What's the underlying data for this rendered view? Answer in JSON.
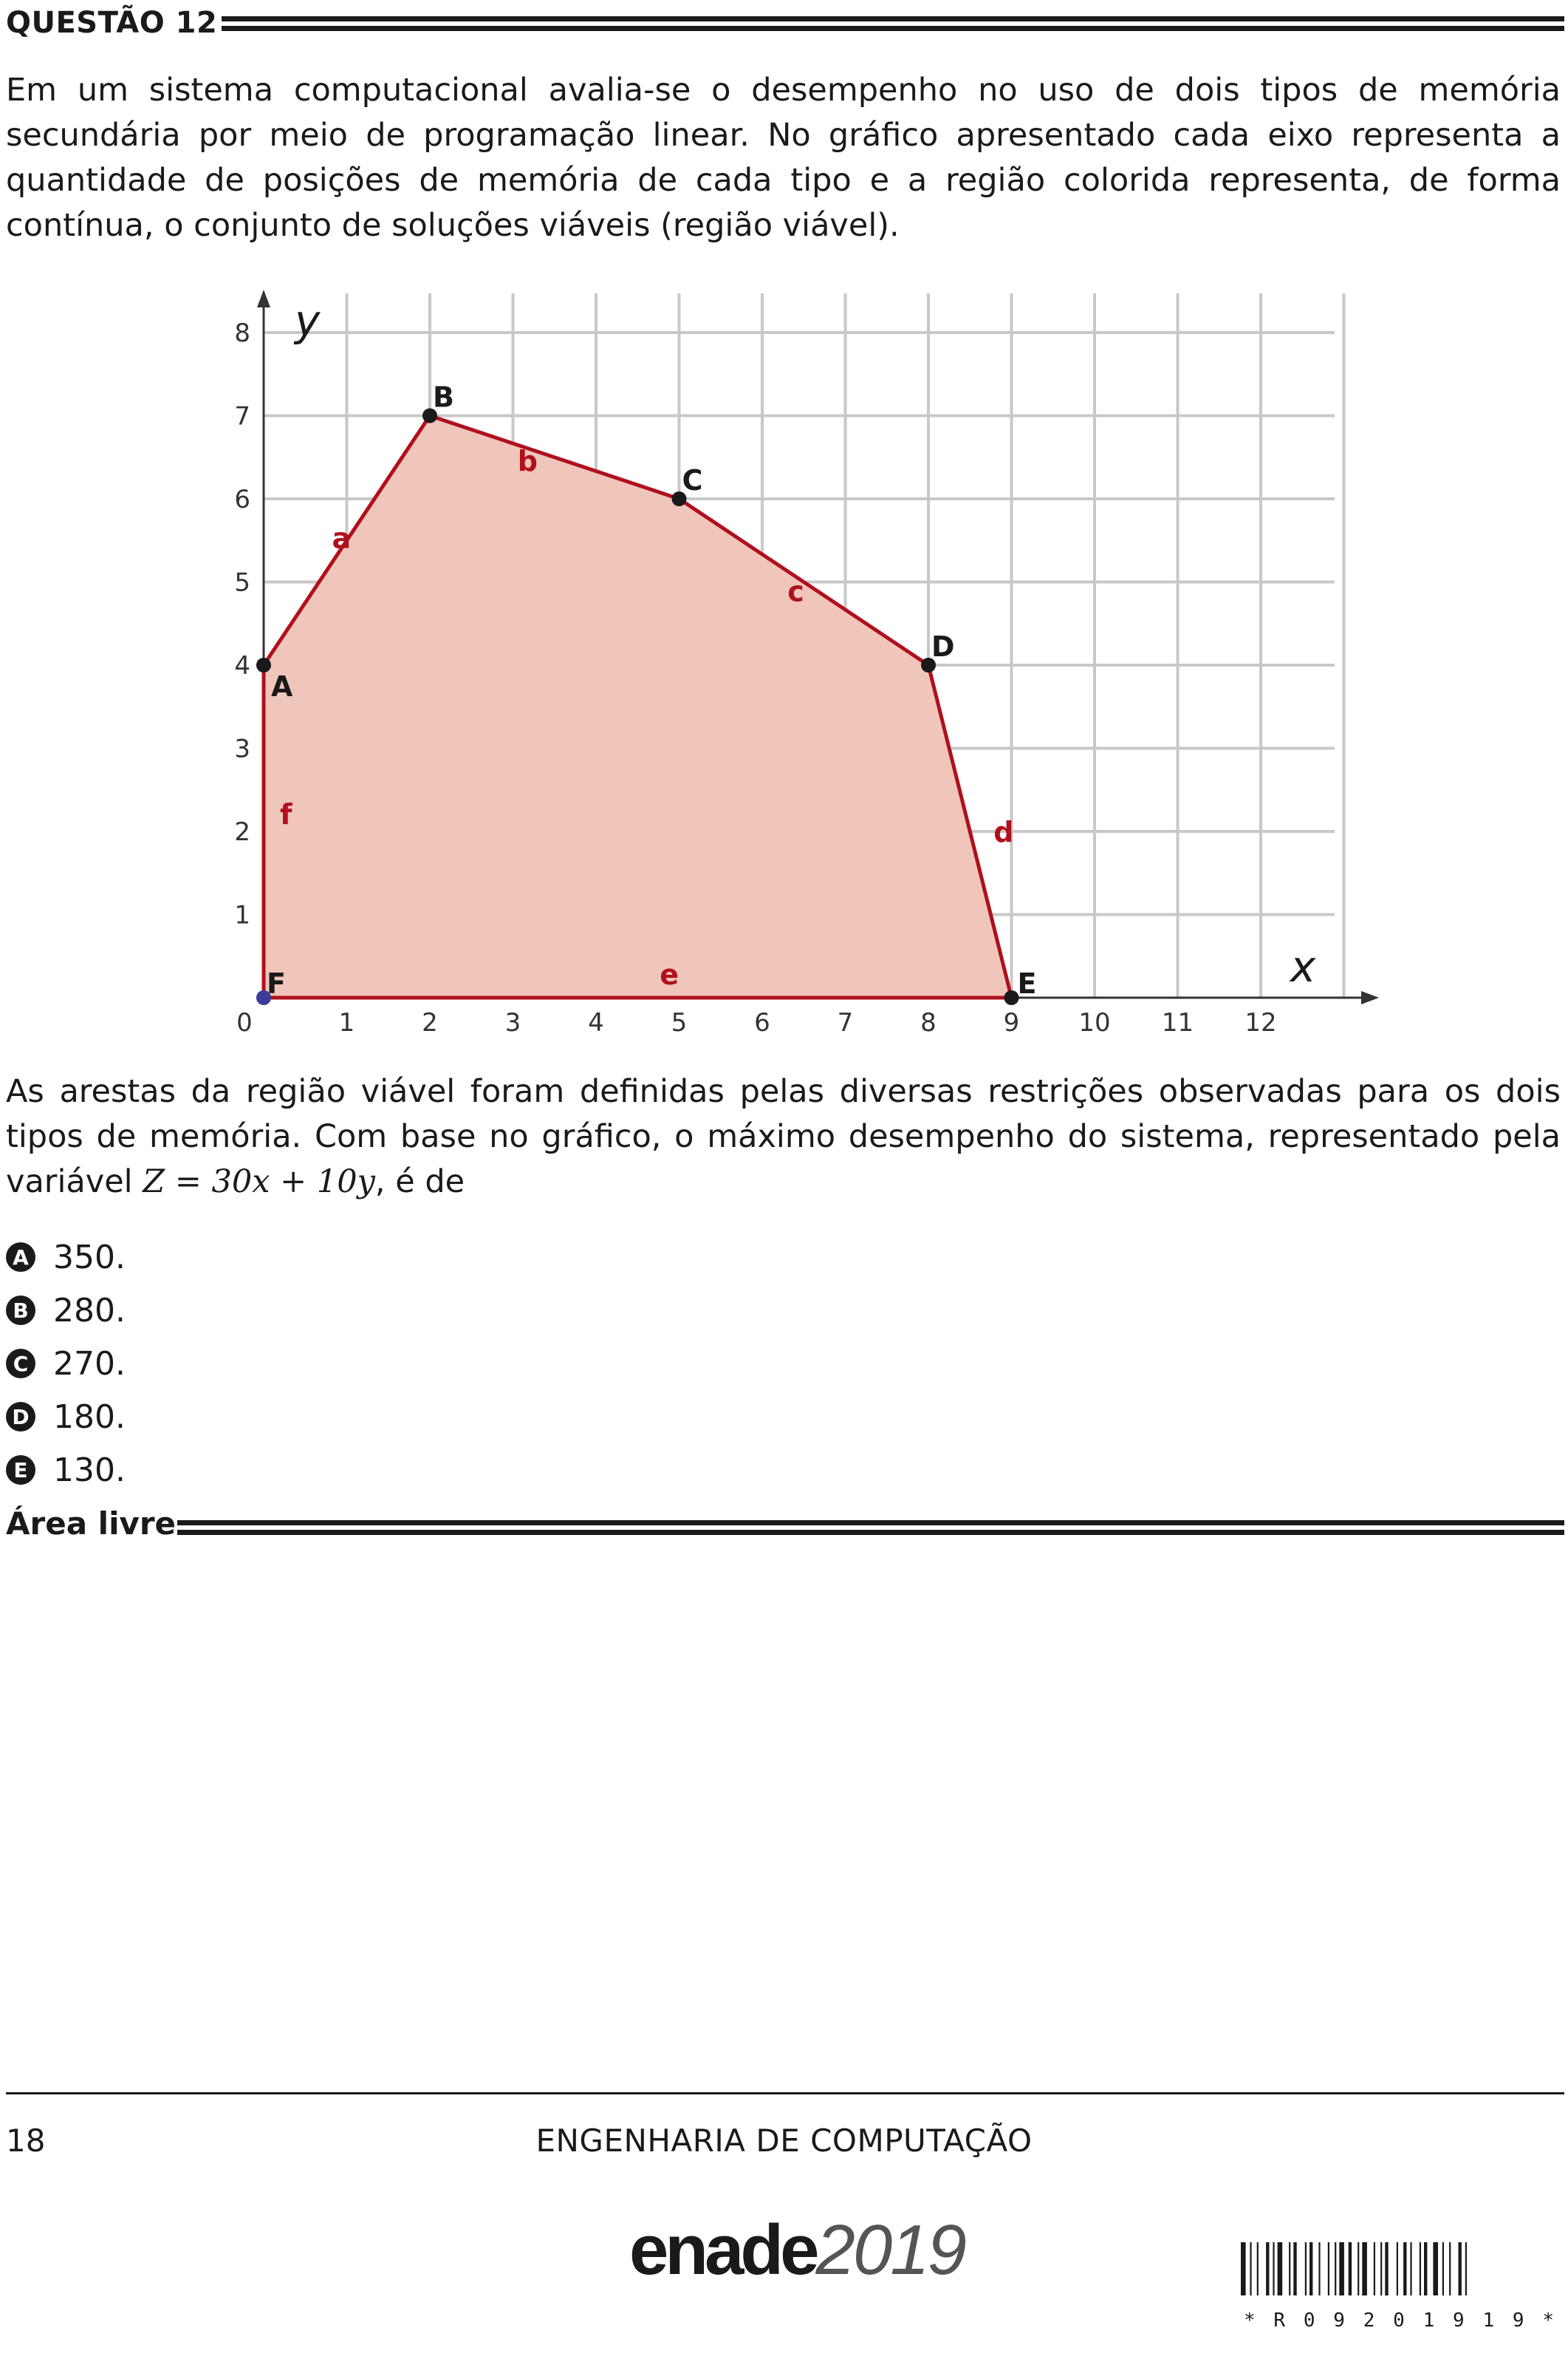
{
  "header": {
    "title": "QUESTÃO 12"
  },
  "statement": {
    "paragraph1": "Em um sistema computacional avalia-se o desempenho no uso de dois tipos de memória secundária por meio de programação linear. No gráfico apresentado cada eixo representa a quantidade de posições de memória de cada tipo e a região colorida representa, de forma contínua, o conjunto de soluções viáveis (região viável).",
    "paragraph2": "As arestas da região viável foram definidas pelas diversas restrições observadas para os dois tipos de memória. Com base no gráfico, o máximo desempenho do sistema, representado pela variável",
    "formula": "Z = 30x + 10y",
    "paragraph2_end": ", é de"
  },
  "chart_data": {
    "type": "area",
    "xlabel": "x",
    "ylabel": "y",
    "xlim": [
      0,
      12
    ],
    "ylim": [
      0,
      8
    ],
    "x_ticks": [
      0,
      1,
      2,
      3,
      4,
      5,
      6,
      7,
      8,
      9,
      10,
      11,
      12
    ],
    "y_ticks": [
      1,
      2,
      3,
      4,
      5,
      6,
      7,
      8
    ],
    "grid": true,
    "vertices": [
      {
        "label": "A",
        "x": 0,
        "y": 4
      },
      {
        "label": "B",
        "x": 2,
        "y": 7
      },
      {
        "label": "C",
        "x": 5,
        "y": 6
      },
      {
        "label": "D",
        "x": 8,
        "y": 4
      },
      {
        "label": "E",
        "x": 9,
        "y": 0
      },
      {
        "label": "F",
        "x": 0,
        "y": 0
      }
    ],
    "edges": [
      {
        "label": "a",
        "from": "A",
        "to": "B"
      },
      {
        "label": "b",
        "from": "B",
        "to": "C"
      },
      {
        "label": "c",
        "from": "C",
        "to": "D"
      },
      {
        "label": "d",
        "from": "D",
        "to": "E"
      },
      {
        "label": "e",
        "from": "E",
        "to": "F"
      },
      {
        "label": "f",
        "from": "F",
        "to": "A"
      }
    ],
    "colors": {
      "region_fill": "#f1c6ba",
      "edge": "#b0101c",
      "edge_label": "#b0101c",
      "grid": "#c8c8c8",
      "point": "#1a1a1a",
      "origin_point": "#3b3b9a"
    }
  },
  "options": [
    {
      "letter": "A",
      "text": "350."
    },
    {
      "letter": "B",
      "text": "280."
    },
    {
      "letter": "C",
      "text": "270."
    },
    {
      "letter": "D",
      "text": "180."
    },
    {
      "letter": "E",
      "text": "130."
    }
  ],
  "area_livre": {
    "title": "Área livre"
  },
  "footer": {
    "page_number": "18",
    "course": "ENGENHARIA DE COMPUTAÇÃO",
    "logo_word": "enade",
    "logo_year": "2019",
    "barcode_text": "* R 0 9 2 0 1 9 1 9 *"
  }
}
